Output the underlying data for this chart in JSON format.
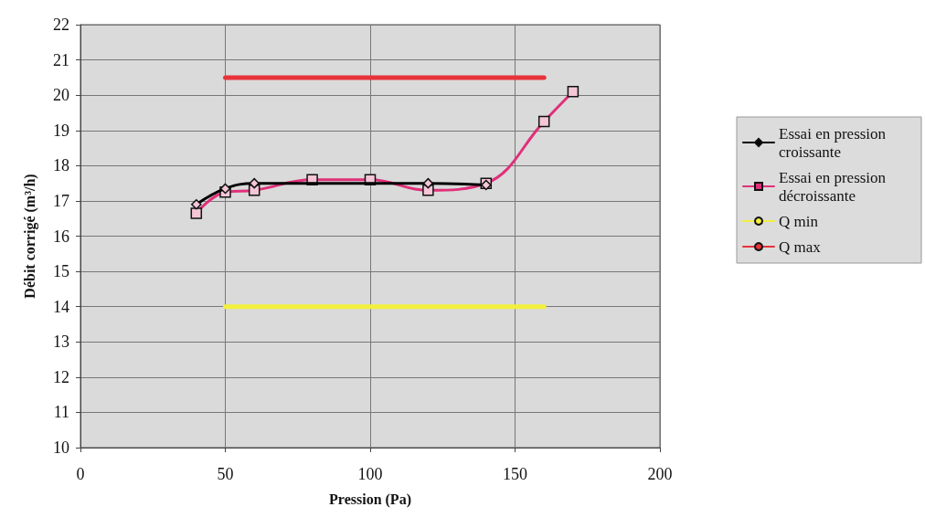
{
  "chart_data": {
    "type": "line",
    "xlabel": "Pression (Pa)",
    "ylabel": "Débit corrigé (m³/h)",
    "xlim": [
      0,
      200
    ],
    "xticks": [
      0,
      50,
      100,
      150,
      200
    ],
    "ylim": [
      10,
      22
    ],
    "yticks": [
      10,
      11,
      12,
      13,
      14,
      15,
      16,
      17,
      18,
      19,
      20,
      21,
      22
    ],
    "grid": true,
    "legend": "right",
    "series": [
      {
        "name": "Essai en pression croissante",
        "color": "#000000",
        "marker": "diamond",
        "x": [
          40,
          50,
          60,
          80,
          100,
          120,
          140
        ],
        "values": [
          16.9,
          17.35,
          17.5,
          null,
          null,
          17.5,
          17.45
        ]
      },
      {
        "name": "Essai en pression décroissante",
        "color": "#e0307a",
        "marker": "square",
        "x": [
          40,
          50,
          60,
          80,
          100,
          120,
          140,
          160,
          170
        ],
        "values": [
          16.65,
          17.25,
          17.3,
          17.6,
          17.6,
          17.3,
          17.5,
          19.25,
          20.1
        ]
      },
      {
        "name": "Q min",
        "color": "#f2f03c",
        "marker": "none",
        "x": [
          50,
          160
        ],
        "values": [
          14,
          14
        ]
      },
      {
        "name": "Q max",
        "color": "#e8333a",
        "marker": "none",
        "x": [
          50,
          160
        ],
        "values": [
          20.5,
          20.5
        ]
      }
    ]
  }
}
